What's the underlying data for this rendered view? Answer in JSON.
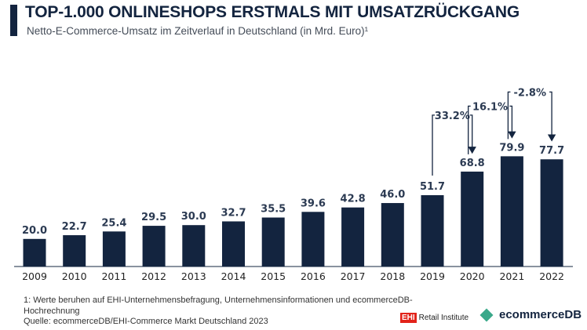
{
  "header": {
    "title": "TOP-1.000 ONLINESHOPS ERSTMALS MIT UMSATZRÜCKGANG",
    "subtitle": "Netto-E-Commerce-Umsatz im Zeitverlauf in Deutschland (in Mrd. Euro)¹"
  },
  "chart_data": {
    "type": "bar",
    "categories": [
      "2009",
      "2010",
      "2011",
      "2012",
      "2013",
      "2014",
      "2015",
      "2016",
      "2017",
      "2018",
      "2019",
      "2020",
      "2021",
      "2022"
    ],
    "values": [
      20.0,
      22.7,
      25.4,
      29.5,
      30.0,
      32.7,
      35.5,
      39.6,
      42.8,
      46.0,
      51.7,
      68.8,
      79.9,
      77.7
    ],
    "annotations": [
      {
        "from": "2019",
        "to": "2020",
        "label": "33.2%"
      },
      {
        "from": "2020",
        "to": "2021",
        "label": "16.1%"
      },
      {
        "from": "2021",
        "to": "2022",
        "label": "-2.8%"
      }
    ],
    "bar_color": "#13243f",
    "grid": false
  },
  "footer": {
    "note": "1: Werte beruhen auf EHI-Unternehmensbefragung, Unternehmensinformationen und ecommerceDB-",
    "note2": "Hochrechnung",
    "source": "Quelle: ecommerceDB/EHI-Commerce Markt Deutschland 2023"
  },
  "logos": {
    "ehi_box": "EHI",
    "ehi_text": "Retail Institute",
    "edb": "ecommerceDB"
  }
}
